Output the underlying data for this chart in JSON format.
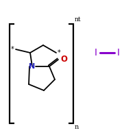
{
  "background_color": "#ffffff",
  "bracket_color": "#000000",
  "bond_color": "#000000",
  "N_color": "#2222bb",
  "O_color": "#cc0000",
  "I_color": "#8800cc",
  "text_color": "#000000",
  "star_color": "#000000",
  "n_label": "n",
  "nt_label": "nt",
  "N_label": "N",
  "O_label": "O",
  "I_label": "I",
  "star_label": "*",
  "figsize": [
    2.0,
    2.0
  ],
  "dpi": 100
}
